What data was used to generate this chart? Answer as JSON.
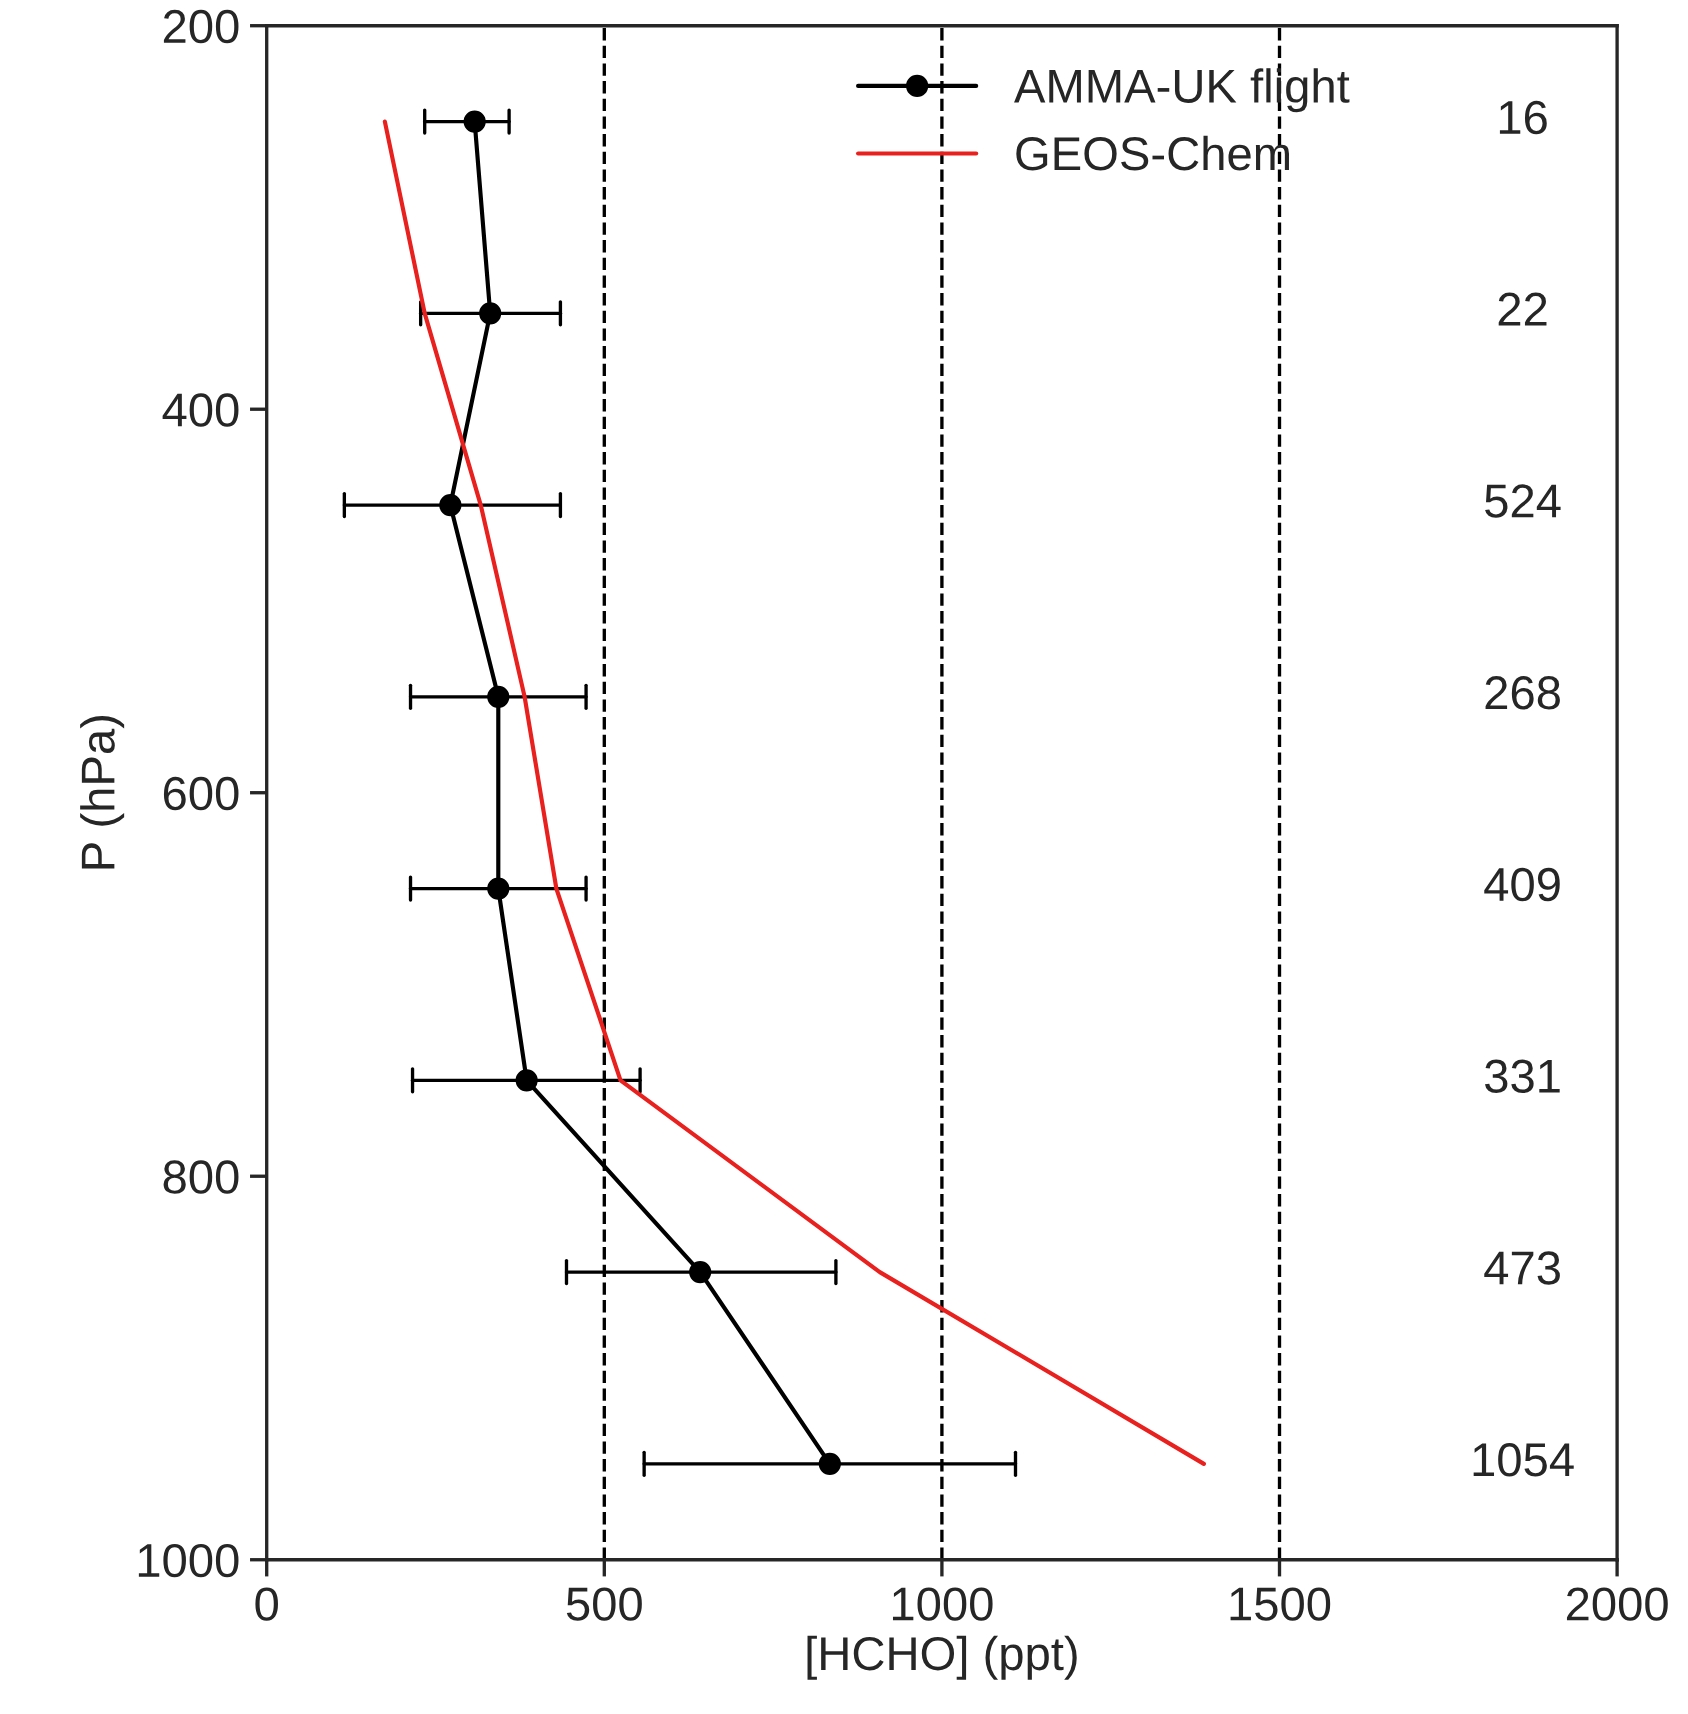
{
  "chart_data": {
    "type": "line",
    "xlabel": "[HCHO] (ppt)",
    "ylabel": "P (hPa)",
    "xlim": [
      0,
      2000
    ],
    "xticks": [
      0,
      500,
      1000,
      1500,
      2000
    ],
    "ylim": [
      1000,
      200
    ],
    "yticks": [
      200,
      400,
      600,
      800,
      1000
    ],
    "grid": false,
    "legend": "top",
    "marker": "circle",
    "line_style": "solid",
    "series": [
      {
        "name": "AMMA-UK flight",
        "color": "#000000",
        "x": [
          308,
          331,
          272,
          343,
          343,
          385,
          642,
          834
        ],
        "values": [
          250,
          350,
          450,
          550,
          650,
          750,
          850,
          950
        ],
        "xerrors": [
          [
            234,
            359
          ],
          [
            228,
            435
          ],
          [
            115,
            435
          ],
          [
            213,
            473
          ],
          [
            213,
            473
          ],
          [
            216,
            553
          ],
          [
            444,
            843
          ],
          [
            559,
            1109
          ]
        ]
      },
      {
        "name": "GEOS-Chem",
        "color": "#e8201e",
        "marker": "none",
        "x": [
          175,
          234,
          317,
          382,
          429,
          524,
          908,
          1388
        ],
        "values": [
          250,
          350,
          450,
          550,
          650,
          750,
          850,
          950
        ]
      }
    ],
    "ref_lines": [
      {
        "axis": "x",
        "value": 500,
        "color": "#000000",
        "line_style": "dashed"
      },
      {
        "axis": "x",
        "value": 1000,
        "color": "#000000",
        "line_style": "dashed"
      },
      {
        "axis": "x",
        "value": 1500,
        "color": "#000000",
        "line_style": "dashed"
      }
    ],
    "annotations": [
      "16",
      "22",
      "524",
      "268",
      "409",
      "331",
      "473",
      "1054"
    ]
  }
}
